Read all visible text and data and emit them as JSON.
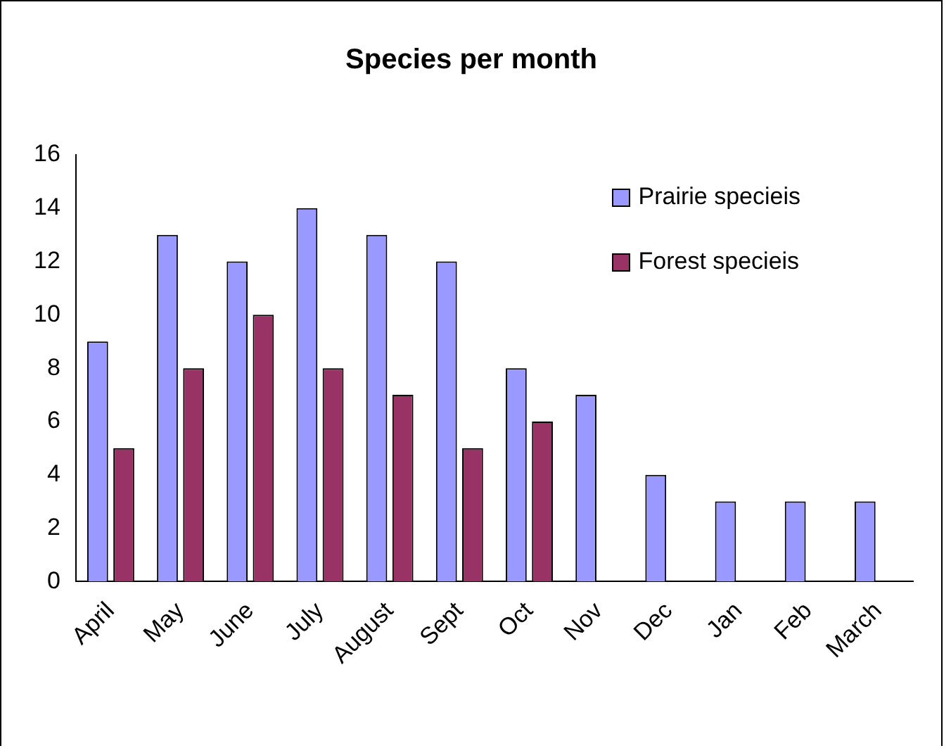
{
  "chart_data": {
    "type": "bar",
    "title": "Species per month",
    "categories": [
      "April",
      "May",
      "June",
      "July",
      "August",
      "Sept",
      "Oct",
      "Nov",
      "Dec",
      "Jan",
      "Feb",
      "March"
    ],
    "series": [
      {
        "name": "Prairie specieis",
        "color": "#9999ff",
        "values": [
          9,
          13,
          12,
          14,
          13,
          12,
          8,
          7,
          4,
          3,
          3,
          3
        ]
      },
      {
        "name": "Forest specieis",
        "color": "#993366",
        "values": [
          5,
          8,
          10,
          8,
          7,
          5,
          6,
          null,
          null,
          null,
          null,
          null
        ]
      }
    ],
    "ylim": [
      0,
      16
    ],
    "yticks": [
      0,
      2,
      4,
      6,
      8,
      10,
      12,
      14,
      16
    ],
    "grid": false,
    "legend": "top right"
  }
}
